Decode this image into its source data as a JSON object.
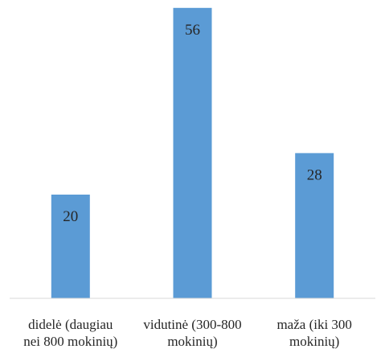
{
  "chart_data": {
    "type": "bar",
    "categories": [
      [
        "didelė (daugiau",
        "nei 800 mokinių)"
      ],
      [
        "vidutinė (300-800",
        "mokinių)"
      ],
      [
        "maža (iki 300",
        "mokinių)"
      ]
    ],
    "values": [
      20,
      56,
      28
    ],
    "data_labels": [
      "20",
      "56",
      "28"
    ],
    "ylim": [
      0,
      60
    ],
    "grid": false,
    "legend": "none",
    "bar_color": "#5b9bd5",
    "axis_color": "#d9d9d9",
    "label_color": "#262626"
  }
}
